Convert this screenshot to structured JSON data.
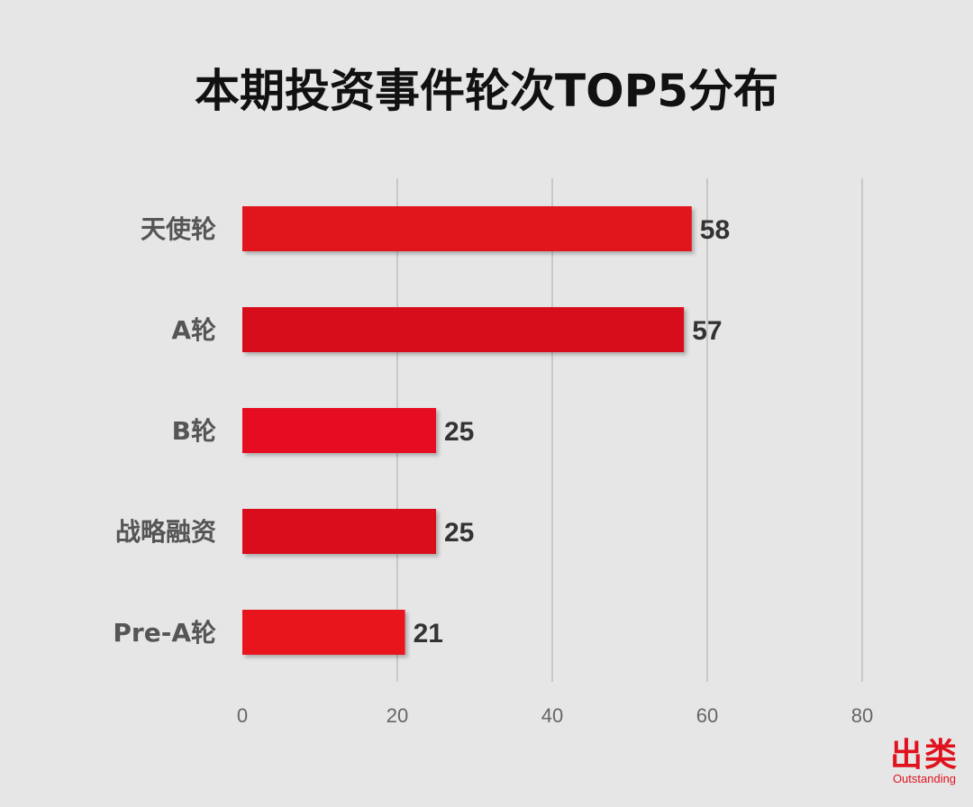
{
  "chart_data": {
    "type": "bar",
    "orientation": "horizontal",
    "title": "本期投资事件轮次TOP5分布",
    "categories": [
      "天使轮",
      "A轮",
      "B轮",
      "战略融资",
      "Pre-A轮"
    ],
    "values": [
      58,
      57,
      25,
      25,
      21
    ],
    "xlim": [
      0,
      80
    ],
    "x_ticks": [
      0,
      20,
      40,
      60,
      80
    ],
    "xlabel": "",
    "ylabel": "",
    "grid": "vertical",
    "legend": "none",
    "bar_color": "#e0121e"
  },
  "logo": {
    "main": "出类",
    "sub": "Outstanding"
  }
}
